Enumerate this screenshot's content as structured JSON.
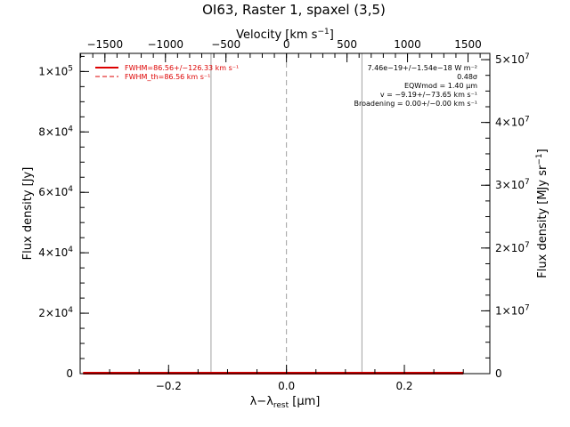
{
  "chart_data": {
    "type": "line",
    "title": "OI63, Raster 1, spaxel (3,5)",
    "xlabel": "λ−λrest [μm]",
    "ylabel_left": "Flux density [Jy]",
    "ylabel_right": "Flux density [MJy sr⁻¹]",
    "xlabel_top": "Velocity [km s⁻¹]",
    "xlim": [
      -0.35,
      0.345
    ],
    "ylim": [
      0,
      106000
    ],
    "ylim_right": [
      0,
      51000000
    ],
    "x_ticks": [
      {
        "value": -0.2,
        "label": "−0.2"
      },
      {
        "value": 0.0,
        "label": "0.0"
      },
      {
        "value": 0.2,
        "label": "0.2"
      }
    ],
    "x_minor_step": 0.05,
    "y_ticks": [
      {
        "value": 0,
        "label": "0"
      },
      {
        "value": 20000,
        "mant": "2×10",
        "exp": "4"
      },
      {
        "value": 40000,
        "mant": "4×10",
        "exp": "4"
      },
      {
        "value": 60000,
        "mant": "6×10",
        "exp": "4"
      },
      {
        "value": 80000,
        "mant": "8×10",
        "exp": "4"
      },
      {
        "value": 100000,
        "mant": "1×10",
        "exp": "5"
      }
    ],
    "y_minor_step": 5000,
    "y_right_ticks": [
      {
        "value": 0,
        "label": "0"
      },
      {
        "value": 10000000,
        "mant": "1×10",
        "exp": "7"
      },
      {
        "value": 20000000,
        "mant": "2×10",
        "exp": "7"
      },
      {
        "value": 30000000,
        "mant": "3×10",
        "exp": "7"
      },
      {
        "value": 40000000,
        "mant": "4×10",
        "exp": "7"
      },
      {
        "value": 50000000,
        "mant": "5×10",
        "exp": "7"
      }
    ],
    "y_right_minor_step": 2500000,
    "vel_ticks": [
      {
        "value": -1500,
        "label": "−1500"
      },
      {
        "value": -1000,
        "label": "−1000"
      },
      {
        "value": -500,
        "label": "−500"
      },
      {
        "value": 0,
        "label": "0"
      },
      {
        "value": 500,
        "label": "500"
      },
      {
        "value": 1000,
        "label": "1000"
      },
      {
        "value": 1500,
        "label": "1500"
      }
    ],
    "vel_minor_step": 100,
    "vel_per_micron": 4870,
    "vlines": [
      {
        "x": -0.128,
        "color": "#a0a0a0",
        "dash": false
      },
      {
        "x": 0.0,
        "color": "#a0a0a0",
        "dash": true
      },
      {
        "x": 0.128,
        "color": "#a0a0a0",
        "dash": false
      }
    ],
    "series": [
      {
        "name": "FWHM=86.56+/−126.33 km s⁻¹",
        "color": "#dd0000",
        "dash": false,
        "x": [
          -0.345,
          -0.2,
          -0.1,
          0.0,
          0.1,
          0.2,
          0.3
        ],
        "y": [
          0,
          0,
          0,
          0,
          0,
          0,
          0
        ]
      },
      {
        "name": "FWHM_th=86.56 km s⁻¹",
        "color": "#dd0000",
        "dash": true,
        "x": [
          -0.345,
          0.3
        ],
        "y": [
          0,
          0
        ]
      }
    ],
    "annotations": [
      "7.46e−19+/−1.54e−18 W m⁻²",
      "0.48σ",
      "EQWmod = 1.40 μm",
      "v = −9.19+/−73.65 km s⁻¹",
      "Broadening = 0.00+/−0.00 km s⁻¹"
    ]
  }
}
